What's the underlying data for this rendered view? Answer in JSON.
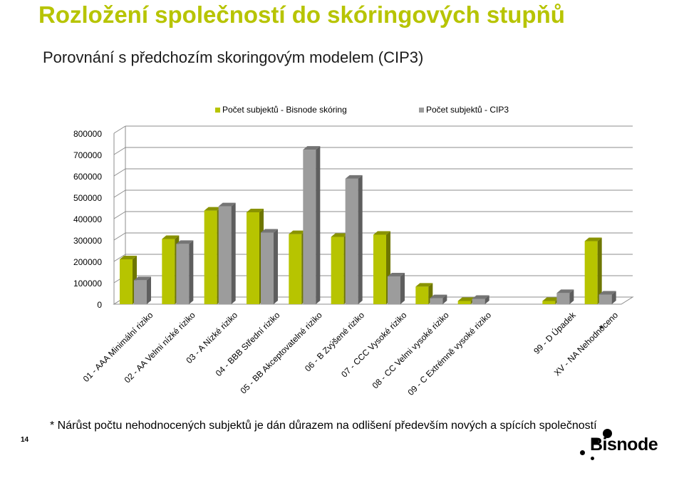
{
  "header": {
    "title": "Rozložení společností do skóringových stupňů",
    "subtitle": "Porovnání s předchozím skoringovým modelem (CIP3)"
  },
  "footer": {
    "note": "* Nárůst počtu nehodnocených subjektů je dán důrazem na odlišení především nových a spících společností",
    "page_number": "14",
    "logo_text": "Bisnode"
  },
  "colors": {
    "series1": "#b7c400",
    "series2": "#9c9c9c",
    "title": "#b7c400"
  },
  "chart_data": {
    "type": "bar",
    "categories": [
      "01 - AAA Minimální riziko",
      "02 - AA Velmi nízké riziko",
      "03 - A Nízké riziko",
      "04 - BBB Střední riziko",
      "05 - BB Akceptovatelné riziko",
      "06 - B Zvýšené riziko",
      "07 - CCC Vysoké riziko",
      "08 - CC Velmi vysoké riziko",
      "09 - C Extrémně vysoké riziko",
      "",
      "99 - D Úpadek",
      "XV - NA Nehodnoceno"
    ],
    "series": [
      {
        "name": "Počet subjektů - Bisnode skóring",
        "values": [
          210000,
          305000,
          438000,
          430000,
          328000,
          315000,
          325000,
          82000,
          15000,
          0,
          15000,
          295000
        ]
      },
      {
        "name": "Počet subjektů - CIP3",
        "values": [
          112000,
          282000,
          458000,
          335000,
          723000,
          587000,
          130000,
          28000,
          25000,
          0,
          52000,
          45000
        ]
      }
    ],
    "ylim": [
      0,
      800000
    ],
    "yticks": [
      "0",
      "100000",
      "200000",
      "300000",
      "400000",
      "500000",
      "600000",
      "700000",
      "800000"
    ],
    "annotation": "*",
    "legend": "top",
    "grid": true
  }
}
